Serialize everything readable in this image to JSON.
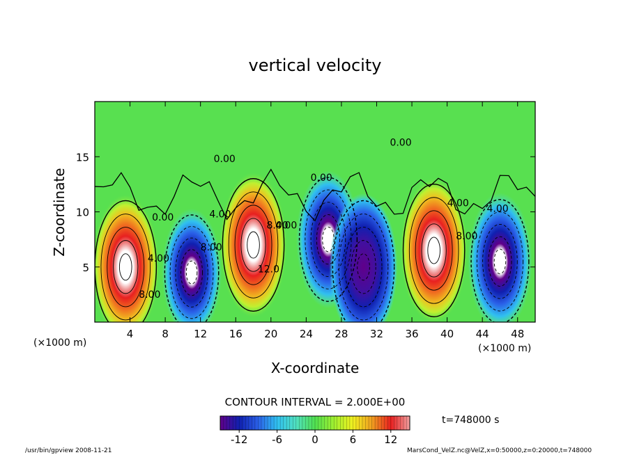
{
  "chart_data": {
    "type": "heatmap",
    "title": "vertical velocity",
    "xlabel": "X-coordinate",
    "ylabel": "Z-coordinate",
    "x_unit_left": "(×1000 m)",
    "x_unit_right": "(×1000 m)",
    "xlim": [
      0,
      50
    ],
    "ylim": [
      0,
      20
    ],
    "x_ticks": [
      4,
      8,
      12,
      16,
      20,
      24,
      28,
      32,
      36,
      40,
      44,
      48
    ],
    "y_ticks": [
      5,
      10,
      15
    ],
    "contour_interval_text": "CONTOUR INTERVAL = 2.000E+00",
    "time_label": "t=748000 s",
    "colorbar": {
      "range": [
        -15,
        15
      ],
      "ticks": [
        -12,
        -6,
        0,
        6,
        12
      ],
      "colors": [
        "#60008a",
        "#1020b0",
        "#2a60e8",
        "#30c0f0",
        "#50e0c0",
        "#50e050",
        "#a0f030",
        "#f0f020",
        "#f0a020",
        "#e82020",
        "#f0a0a0"
      ]
    },
    "cells": [
      {
        "x": 3.5,
        "z": 5.0,
        "w": 14
      },
      {
        "x": 11.0,
        "z": 4.5,
        "w": -10
      },
      {
        "x": 18.0,
        "z": 7.0,
        "w": 14
      },
      {
        "x": 26.5,
        "z": 7.5,
        "w": -12
      },
      {
        "x": 30.5,
        "z": 5.0,
        "w": -14
      },
      {
        "x": 38.5,
        "z": 6.5,
        "w": 14
      },
      {
        "x": 46.0,
        "z": 5.5,
        "w": -12
      }
    ],
    "contour_labels": [
      {
        "text": "0.00",
        "x": 6.5,
        "z": 9.2
      },
      {
        "text": "4.00",
        "x": 6.0,
        "z": 5.5
      },
      {
        "text": "8.00",
        "x": 5.0,
        "z": 2.2
      },
      {
        "text": "4.00",
        "x": 13.0,
        "z": 9.5
      },
      {
        "text": "8.00",
        "x": 12.0,
        "z": 6.5
      },
      {
        "text": "0.00",
        "x": 13.5,
        "z": 14.5
      },
      {
        "text": "8.00",
        "x": 19.5,
        "z": 8.5
      },
      {
        "text": "4.00",
        "x": 20.5,
        "z": 8.5
      },
      {
        "text": "12.0",
        "x": 18.5,
        "z": 4.5
      },
      {
        "text": "0.00",
        "x": 24.5,
        "z": 12.8
      },
      {
        "text": "0.00",
        "x": 33.5,
        "z": 16.0
      },
      {
        "text": "4.00",
        "x": 40.0,
        "z": 10.5
      },
      {
        "text": "8.00",
        "x": 41.0,
        "z": 7.5
      },
      {
        "text": "4.00",
        "x": 44.5,
        "z": 10.0
      }
    ]
  },
  "footer": {
    "left_text": "/usr/bin/gpview  2008-11-21",
    "right_text": "MarsCond_VelZ.nc@VelZ,x=0:50000,z=0:20000,t=748000"
  }
}
